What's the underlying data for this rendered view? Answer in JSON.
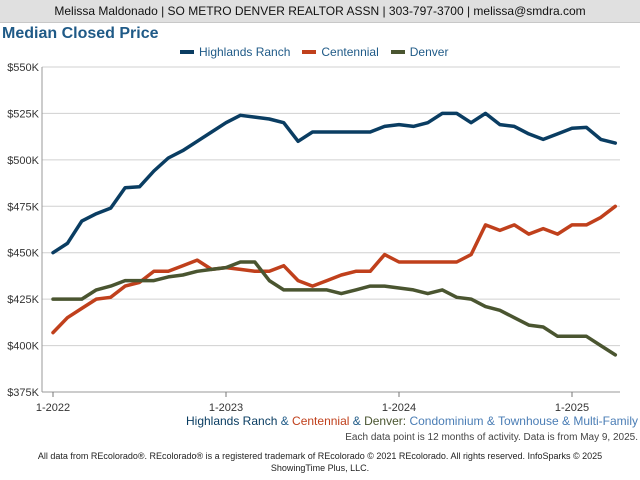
{
  "header": {
    "contact": "Melissa Maldonado | SO METRO DENVER REALTOR ASSN | 303-797-3700 | melissa@smdra.com"
  },
  "subtitle": {
    "part1": "Highlands Ranch",
    "amp1": " & ",
    "part2": "Centennial",
    "amp2": " & ",
    "part3": "Denver: ",
    "part4": "Condominium & Townhouse & Multi-Family"
  },
  "note": "Each data point is 12 months of activity. Data is from May 9, 2025.",
  "footer": {
    "line1": "All data from REcolorado®. REcolorado® is a registered trademark of REcolorado © 2021 REcolorado. All rights reserved. InfoSparks © 2025",
    "line2": "ShowingTime Plus, LLC."
  },
  "colors": {
    "title": "#1f5a87",
    "highlands": "#0a3d62",
    "centennial": "#c0401c",
    "denver": "#4a5530",
    "grid": "#d0d0d0"
  },
  "chart_data": {
    "type": "line",
    "title": "Median Closed Price",
    "x": [
      "2022-01",
      "2022-02",
      "2022-03",
      "2022-04",
      "2022-05",
      "2022-06",
      "2022-07",
      "2022-08",
      "2022-09",
      "2022-10",
      "2022-11",
      "2022-12",
      "2023-01",
      "2023-02",
      "2023-03",
      "2023-04",
      "2023-05",
      "2023-06",
      "2023-07",
      "2023-08",
      "2023-09",
      "2023-10",
      "2023-11",
      "2023-12",
      "2024-01",
      "2024-02",
      "2024-03",
      "2024-04",
      "2024-05",
      "2024-06",
      "2024-07",
      "2024-08",
      "2024-09",
      "2024-10",
      "2024-11",
      "2024-12",
      "2025-01",
      "2025-02",
      "2025-03",
      "2025-04"
    ],
    "xticks": [
      "1-2022",
      "1-2023",
      "1-2024",
      "1-2025"
    ],
    "yticks": [
      "$375K",
      "$400K",
      "$425K",
      "$450K",
      "$475K",
      "$500K",
      "$525K",
      "$550K"
    ],
    "ylim": [
      375000,
      550000
    ],
    "legend_position": "top",
    "grid": true,
    "series": [
      {
        "name": "Highlands Ranch",
        "color": "#0a3d62",
        "values": [
          450000,
          455000,
          467000,
          471000,
          474000,
          485000,
          485500,
          494000,
          501000,
          505000,
          510000,
          515000,
          520000,
          524000,
          523000,
          522000,
          520000,
          510000,
          515000,
          515000,
          515000,
          515000,
          515000,
          518000,
          519000,
          518000,
          520000,
          525000,
          525000,
          520000,
          525000,
          519000,
          518000,
          514000,
          511000,
          514000,
          517000,
          517500,
          511000,
          509000
        ]
      },
      {
        "name": "Centennial",
        "color": "#c0401c",
        "values": [
          407000,
          415000,
          420000,
          425000,
          426000,
          432000,
          434000,
          440000,
          440000,
          443000,
          446000,
          441000,
          442000,
          441000,
          440000,
          440000,
          443000,
          435000,
          432000,
          435000,
          438000,
          440000,
          440000,
          449000,
          445000,
          445000,
          445000,
          445000,
          445000,
          449000,
          465000,
          462000,
          465000,
          460000,
          463000,
          460000,
          465000,
          465000,
          469000,
          475000
        ]
      },
      {
        "name": "Denver",
        "color": "#4a5530",
        "values": [
          425000,
          425000,
          425000,
          430000,
          432000,
          435000,
          435000,
          435000,
          437000,
          438000,
          440000,
          441000,
          442000,
          445000,
          445000,
          435000,
          430000,
          430000,
          430000,
          430000,
          428000,
          430000,
          432000,
          432000,
          431000,
          430000,
          428000,
          430000,
          426000,
          425000,
          421000,
          419000,
          415000,
          411000,
          410000,
          405000,
          405000,
          405000,
          400000,
          395000
        ]
      }
    ]
  }
}
